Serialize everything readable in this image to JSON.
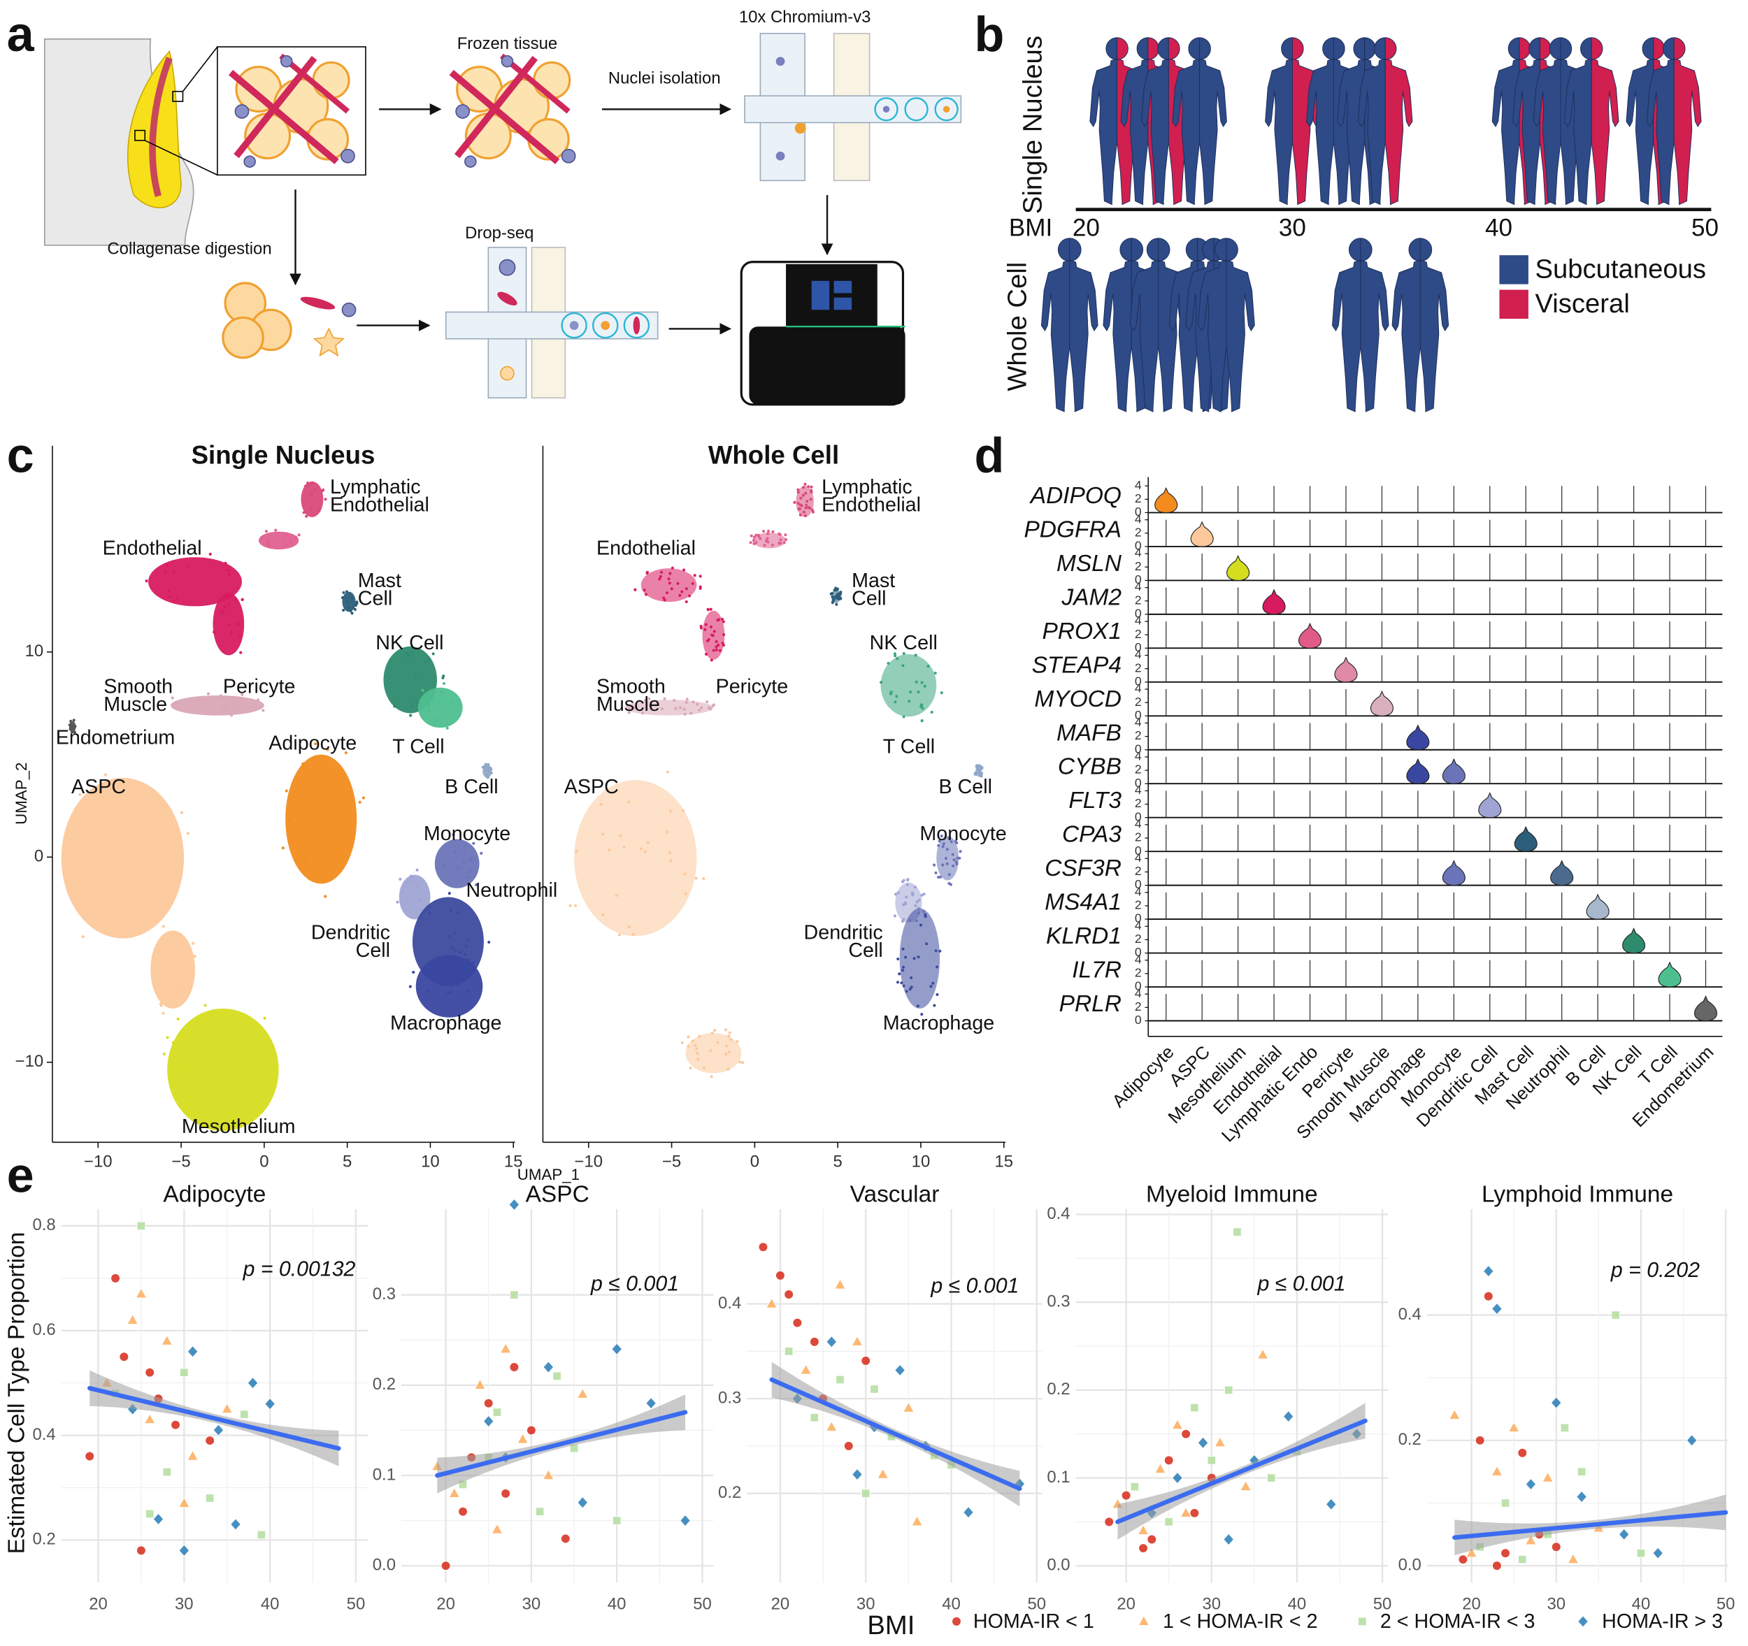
{
  "panel_labels": [
    "a",
    "b",
    "c",
    "d",
    "e"
  ],
  "panel_a": {
    "frozen_tissue": "Frozen tissue",
    "chromium": "10x Chromium-v3",
    "nuclei_isolation": "Nuclei isolation",
    "collagenase": "Collagenase digestion",
    "dropseq": "Drop-seq"
  },
  "panel_b": {
    "rows": [
      "Single Nucleus",
      "Whole Cell"
    ],
    "axis_label": "BMI",
    "xlim": [
      19.5,
      50.3
    ],
    "xticks": [
      20,
      30,
      40,
      50
    ],
    "single_nucleus": {
      "bmi": [
        21.5,
        23,
        24,
        25.5,
        30,
        32,
        33.5,
        34.5,
        41,
        42,
        43,
        44.5,
        47.5,
        48.5
      ],
      "visceral": [
        true,
        true,
        true,
        false,
        true,
        false,
        false,
        true,
        true,
        true,
        false,
        true,
        true,
        true
      ]
    },
    "whole_cell": {
      "bmi": [
        19.2,
        22.2,
        23.5,
        25.4,
        26.2,
        26.8,
        33.3,
        36.2
      ]
    },
    "legend": [
      {
        "name": "Subcutaneous",
        "color": "#2e4a87"
      },
      {
        "name": "Visceral",
        "color": "#d11f4f"
      }
    ]
  },
  "panel_c": {
    "titles": [
      "Single Nucleus",
      "Whole Cell"
    ],
    "x_axis_label": "UMAP_1",
    "y_axis_label": "UMAP_2",
    "xlim": [
      -12.75,
      15.1
    ],
    "ylim": [
      -13.9,
      20.05
    ],
    "xticks": [
      {
        "value": -10,
        "label": "−10"
      },
      {
        "value": -5,
        "label": "−5"
      },
      0,
      5,
      10,
      15
    ],
    "yticks": [
      {
        "value": -10,
        "label": "−10"
      },
      0,
      10
    ],
    "single_nucleus_labels": [
      [
        "Lymphatic",
        "Endothelial"
      ],
      [
        "Endothelial"
      ],
      [
        "Mast",
        "Cell"
      ],
      [
        "NK Cell"
      ],
      [
        "Smooth",
        "Muscle"
      ],
      [
        "Pericyte"
      ],
      [
        "Endometrium"
      ],
      [
        "T Cell"
      ],
      [
        "Adipocyte"
      ],
      [
        "ASPC"
      ],
      [
        "B Cell"
      ],
      [
        "Monocyte"
      ],
      [
        "Neutrophil"
      ],
      [
        "Dendritic",
        "Cell"
      ],
      [
        "Macrophage"
      ],
      [
        "Mesothelium"
      ]
    ],
    "whole_cell_labels": [
      [
        "Lymphatic",
        "Endothelial"
      ],
      [
        "Endothelial"
      ],
      [
        "Mast",
        "Cell"
      ],
      [
        "NK Cell"
      ],
      [
        "Smooth",
        "Muscle"
      ],
      [
        "Pericyte"
      ],
      [
        "T Cell"
      ],
      [
        "ASPC"
      ],
      [
        "B Cell"
      ],
      [
        "Monocyte"
      ],
      [
        "Dendritic",
        "Cell"
      ],
      [
        "Macrophage"
      ]
    ]
  },
  "panel_d": {
    "ylim": [
      0,
      4.5
    ],
    "yticks": [
      0,
      2,
      4
    ],
    "genes": [
      {
        "name": "ADIPOQ",
        "marker_of": [
          "Adipocyte"
        ]
      },
      {
        "name": "PDGFRA",
        "marker_of": [
          "ASPC"
        ]
      },
      {
        "name": "MSLN",
        "marker_of": [
          "Mesothelium"
        ]
      },
      {
        "name": "JAM2",
        "marker_of": [
          "Endothelial"
        ]
      },
      {
        "name": "PROX1",
        "marker_of": [
          "Lymphatic Endo"
        ]
      },
      {
        "name": "STEAP4",
        "marker_of": [
          "Pericyte"
        ]
      },
      {
        "name": "MYOCD",
        "marker_of": [
          "Smooth Muscle"
        ]
      },
      {
        "name": "MAFB",
        "marker_of": [
          "Macrophage"
        ]
      },
      {
        "name": "CYBB",
        "marker_of": [
          "Macrophage",
          "Monocyte"
        ]
      },
      {
        "name": "FLT3",
        "marker_of": [
          "Dendritic Cell"
        ]
      },
      {
        "name": "CPA3",
        "marker_of": [
          "Mast Cell"
        ]
      },
      {
        "name": "CSF3R",
        "marker_of": [
          "Monocyte",
          "Neutrophil"
        ]
      },
      {
        "name": "MS4A1",
        "marker_of": [
          "B Cell"
        ]
      },
      {
        "name": "KLRD1",
        "marker_of": [
          "NK Cell"
        ]
      },
      {
        "name": "IL7R",
        "marker_of": [
          "T Cell"
        ]
      },
      {
        "name": "PRLR",
        "marker_of": [
          "Endometrium"
        ]
      }
    ],
    "cell_types": [
      {
        "name": "Adipocyte",
        "color": "#f28c1e"
      },
      {
        "name": "ASPC",
        "color": "#fcc89b"
      },
      {
        "name": "Mesothelium",
        "color": "#d6dd1f"
      },
      {
        "name": "Endothelial",
        "color": "#d81b60"
      },
      {
        "name": "Lymphatic Endo",
        "color": "#e05a8a"
      },
      {
        "name": "Pericyte",
        "color": "#e08aa8"
      },
      {
        "name": "Smooth Muscle",
        "color": "#d9b0bd"
      },
      {
        "name": "Macrophage",
        "color": "#3a47a0"
      },
      {
        "name": "Monocyte",
        "color": "#6b74b8"
      },
      {
        "name": "Dendritic Cell",
        "color": "#a0a4d4"
      },
      {
        "name": "Mast Cell",
        "color": "#2c5e7a"
      },
      {
        "name": "Neutrophil",
        "color": "#4a6a8e"
      },
      {
        "name": "B Cell",
        "color": "#a8b8cc"
      },
      {
        "name": "NK Cell",
        "color": "#2e8b6e"
      },
      {
        "name": "T Cell",
        "color": "#4dbf8f"
      },
      {
        "name": "Endometrium",
        "color": "#666666"
      }
    ]
  },
  "panel_e": {
    "y_axis_label": "Estimated Cell Type Proportion",
    "x_axis_label": "BMI",
    "series": [
      {
        "name": "HOMA-IR < 1",
        "color": "#d7301f",
        "marker": "circle"
      },
      {
        "name": "1 < HOMA-IR < 2",
        "color": "#fdae61",
        "marker": "triangle"
      },
      {
        "name": "2 < HOMA-IR < 3",
        "color": "#b5dea0",
        "marker": "square"
      },
      {
        "name": "HOMA-IR > 3",
        "color": "#2c7fb8",
        "marker": "diamond"
      }
    ],
    "charts": [
      {
        "type": "scatter",
        "title": "Adipocyte",
        "p_label": "p = 0.00132",
        "xlim": [
          15.7,
          51.4
        ],
        "xticks": [
          20,
          30,
          40,
          50
        ],
        "ylim": [
          0.119,
          0.832
        ],
        "yticks": [
          0.2,
          0.4,
          0.6,
          0.8
        ],
        "fit": {
          "x": [
            19,
            48
          ],
          "y": [
            0.49,
            0.375
          ]
        },
        "points": [
          {
            "x": [
              19,
              23,
              25,
              27,
              29,
              33,
              22,
              26
            ],
            "y": [
              0.36,
              0.55,
              0.18,
              0.47,
              0.42,
              0.39,
              0.7,
              0.52
            ]
          },
          {
            "x": [
              21,
              24,
              26,
              28,
              31,
              35,
              25,
              30
            ],
            "y": [
              0.5,
              0.62,
              0.43,
              0.58,
              0.36,
              0.45,
              0.67,
              0.27
            ]
          },
          {
            "x": [
              22,
              25,
              28,
              30,
              33,
              37,
              26,
              39
            ],
            "y": [
              0.48,
              0.8,
              0.33,
              0.52,
              0.28,
              0.44,
              0.25,
              0.21
            ]
          },
          {
            "x": [
              24,
              27,
              31,
              34,
              38,
              40,
              30,
              36
            ],
            "y": [
              0.45,
              0.24,
              0.56,
              0.41,
              0.5,
              0.46,
              0.18,
              0.23
            ]
          }
        ]
      },
      {
        "type": "scatter",
        "title": "ASPC",
        "p_label": "p ≤ 0.001",
        "xlim": [
          14.8,
          51.3
        ],
        "xticks": [
          20,
          30,
          40,
          50
        ],
        "ylim": [
          -0.0185,
          0.395
        ],
        "yticks": [
          {
            "value": 0,
            "label": "0.0"
          },
          0.1,
          0.2,
          0.3
        ],
        "fit": {
          "x": [
            19,
            48
          ],
          "y": [
            0.1,
            0.17
          ]
        },
        "points": [
          {
            "x": [
              20,
              23,
              25,
              27,
              30,
              34,
              28,
              22
            ],
            "y": [
              0.0,
              0.12,
              0.18,
              0.08,
              0.15,
              0.03,
              0.22,
              0.06
            ]
          },
          {
            "x": [
              19,
              24,
              26,
              29,
              32,
              36,
              27,
              21
            ],
            "y": [
              0.11,
              0.2,
              0.04,
              0.14,
              0.1,
              0.19,
              0.24,
              0.08
            ]
          },
          {
            "x": [
              22,
              26,
              28,
              31,
              35,
              40,
              33,
              25
            ],
            "y": [
              0.09,
              0.17,
              0.3,
              0.06,
              0.13,
              0.05,
              0.21,
              0.12
            ]
          },
          {
            "x": [
              25,
              28,
              32,
              36,
              40,
              48,
              27,
              44
            ],
            "y": [
              0.16,
              0.4,
              0.22,
              0.07,
              0.24,
              0.05,
              0.12,
              0.18
            ]
          }
        ]
      },
      {
        "type": "scatter",
        "title": "Vascular",
        "p_label": "p ≤ 0.001",
        "xlim": [
          16.1,
          50.65
        ],
        "xticks": [
          20,
          30,
          40,
          50
        ],
        "ylim": [
          0.106,
          0.5
        ],
        "yticks": [
          0.2,
          0.3,
          0.4
        ],
        "fit": {
          "x": [
            19,
            48
          ],
          "y": [
            0.32,
            0.205
          ]
        },
        "points": [
          {
            "x": [
              18,
              20,
              22,
              25,
              28,
              30,
              21,
              24
            ],
            "y": [
              0.46,
              0.43,
              0.38,
              0.3,
              0.25,
              0.34,
              0.41,
              0.36
            ]
          },
          {
            "x": [
              19,
              23,
              26,
              29,
              32,
              35,
              27,
              36
            ],
            "y": [
              0.4,
              0.33,
              0.27,
              0.36,
              0.22,
              0.29,
              0.42,
              0.17
            ]
          },
          {
            "x": [
              21,
              24,
              27,
              30,
              33,
              38,
              31,
              40
            ],
            "y": [
              0.35,
              0.28,
              0.32,
              0.2,
              0.26,
              0.24,
              0.31,
              0.23
            ]
          },
          {
            "x": [
              22,
              26,
              29,
              31,
              34,
              37,
              42,
              48
            ],
            "y": [
              0.3,
              0.36,
              0.22,
              0.27,
              0.33,
              0.25,
              0.18,
              0.21
            ]
          }
        ]
      },
      {
        "type": "scatter",
        "title": "Myeloid Immune",
        "p_label": "p ≤ 0.001",
        "xlim": [
          14.1,
          50.65
        ],
        "xticks": [
          20,
          30,
          40,
          50
        ],
        "ylim": [
          -0.019,
          0.406
        ],
        "yticks": [
          {
            "value": 0,
            "label": "0.0"
          },
          0.1,
          0.2,
          0.3,
          0.4
        ],
        "fit": {
          "x": [
            19,
            48
          ],
          "y": [
            0.05,
            0.165
          ]
        },
        "points": [
          {
            "x": [
              18,
              20,
              23,
              25,
              28,
              30,
              22,
              27
            ],
            "y": [
              0.05,
              0.08,
              0.03,
              0.12,
              0.06,
              0.1,
              0.02,
              0.15
            ]
          },
          {
            "x": [
              19,
              22,
              24,
              27,
              31,
              34,
              26,
              36
            ],
            "y": [
              0.07,
              0.04,
              0.11,
              0.06,
              0.14,
              0.09,
              0.16,
              0.24
            ]
          },
          {
            "x": [
              21,
              25,
              28,
              30,
              33,
              37,
              32,
              40
            ],
            "y": [
              0.09,
              0.05,
              0.18,
              0.12,
              0.38,
              0.1,
              0.2,
              0.13
            ]
          },
          {
            "x": [
              23,
              26,
              29,
              32,
              35,
              39,
              44,
              47
            ],
            "y": [
              0.06,
              0.1,
              0.14,
              0.03,
              0.12,
              0.17,
              0.07,
              0.15
            ]
          }
        ]
      },
      {
        "type": "scatter",
        "title": "Lymphoid Immune",
        "p_label": "p = 0.202",
        "xlim": [
          14.74,
          50.26
        ],
        "xticks": [
          20,
          30,
          40,
          50
        ],
        "ylim": [
          -0.0267,
          0.569
        ],
        "yticks": [
          {
            "value": 0,
            "label": "0.0"
          },
          0.2,
          0.4
        ],
        "fit": {
          "x": [
            18,
            50
          ],
          "y": [
            0.045,
            0.085
          ]
        },
        "points": [
          {
            "x": [
              19,
              21,
              22,
              24,
              26,
              28,
              23,
              30
            ],
            "y": [
              0.01,
              0.2,
              0.43,
              0.02,
              0.18,
              0.05,
              0.0,
              0.03
            ]
          },
          {
            "x": [
              18,
              20,
              23,
              25,
              27,
              29,
              32,
              35
            ],
            "y": [
              0.24,
              0.02,
              0.15,
              0.22,
              0.04,
              0.14,
              0.01,
              0.06
            ]
          },
          {
            "x": [
              21,
              24,
              26,
              29,
              31,
              33,
              37,
              40
            ],
            "y": [
              0.03,
              0.1,
              0.01,
              0.05,
              0.22,
              0.15,
              0.4,
              0.02
            ]
          },
          {
            "x": [
              22,
              23,
              27,
              30,
              33,
              38,
              42,
              46
            ],
            "y": [
              0.47,
              0.41,
              0.13,
              0.26,
              0.11,
              0.05,
              0.02,
              0.2
            ]
          }
        ]
      }
    ]
  }
}
